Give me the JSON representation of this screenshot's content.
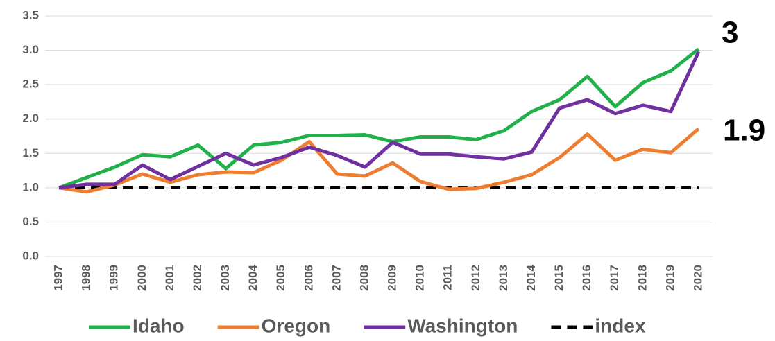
{
  "chart_data": {
    "type": "line",
    "x": [
      "1997",
      "1998",
      "1999",
      "2000",
      "2001",
      "2002",
      "2003",
      "2004",
      "2005",
      "2006",
      "2007",
      "2008",
      "2009",
      "2010",
      "2011",
      "2012",
      "2013",
      "2014",
      "2015",
      "2016",
      "2017",
      "2018",
      "2019",
      "2020"
    ],
    "series": [
      {
        "name": "Idaho",
        "color": "#22b04b",
        "values": [
          1.0,
          1.15,
          1.3,
          1.48,
          1.45,
          1.62,
          1.28,
          1.62,
          1.66,
          1.76,
          1.76,
          1.77,
          1.67,
          1.74,
          1.74,
          1.7,
          1.83,
          2.11,
          2.28,
          2.62,
          2.18,
          2.53,
          2.7,
          3.02
        ]
      },
      {
        "name": "Oregon",
        "color": "#ed7d31",
        "values": [
          1.0,
          0.94,
          1.04,
          1.2,
          1.08,
          1.19,
          1.23,
          1.22,
          1.4,
          1.67,
          1.2,
          1.17,
          1.36,
          1.09,
          0.98,
          0.99,
          1.08,
          1.19,
          1.44,
          1.78,
          1.4,
          1.56,
          1.51,
          1.86
        ]
      },
      {
        "name": "Washington",
        "color": "#7030a0",
        "values": [
          1.0,
          1.05,
          1.05,
          1.33,
          1.12,
          1.31,
          1.5,
          1.33,
          1.44,
          1.59,
          1.47,
          1.3,
          1.66,
          1.49,
          1.49,
          1.45,
          1.42,
          1.52,
          2.16,
          2.28,
          2.08,
          2.2,
          2.11,
          2.98
        ]
      },
      {
        "name": "index",
        "color": "#000000",
        "dashed": true,
        "values": [
          1,
          1,
          1,
          1,
          1,
          1,
          1,
          1,
          1,
          1,
          1,
          1,
          1,
          1,
          1,
          1,
          1,
          1,
          1,
          1,
          1,
          1,
          1,
          1
        ]
      }
    ],
    "ylim": [
      0,
      3.5
    ],
    "yticks": [
      {
        "value": 0,
        "label": "0.0"
      },
      {
        "value": 0.5,
        "label": "0.5"
      },
      {
        "value": 1,
        "label": "1.0"
      },
      {
        "value": 1.5,
        "label": "1.5"
      },
      {
        "value": 2,
        "label": "2.0"
      },
      {
        "value": 2.5,
        "label": "2.5"
      },
      {
        "value": 3,
        "label": "3.0"
      },
      {
        "value": 3.5,
        "label": "3.5"
      }
    ],
    "grid": true,
    "annotations": [
      "3",
      "1.9"
    ],
    "legend": "bottom"
  }
}
